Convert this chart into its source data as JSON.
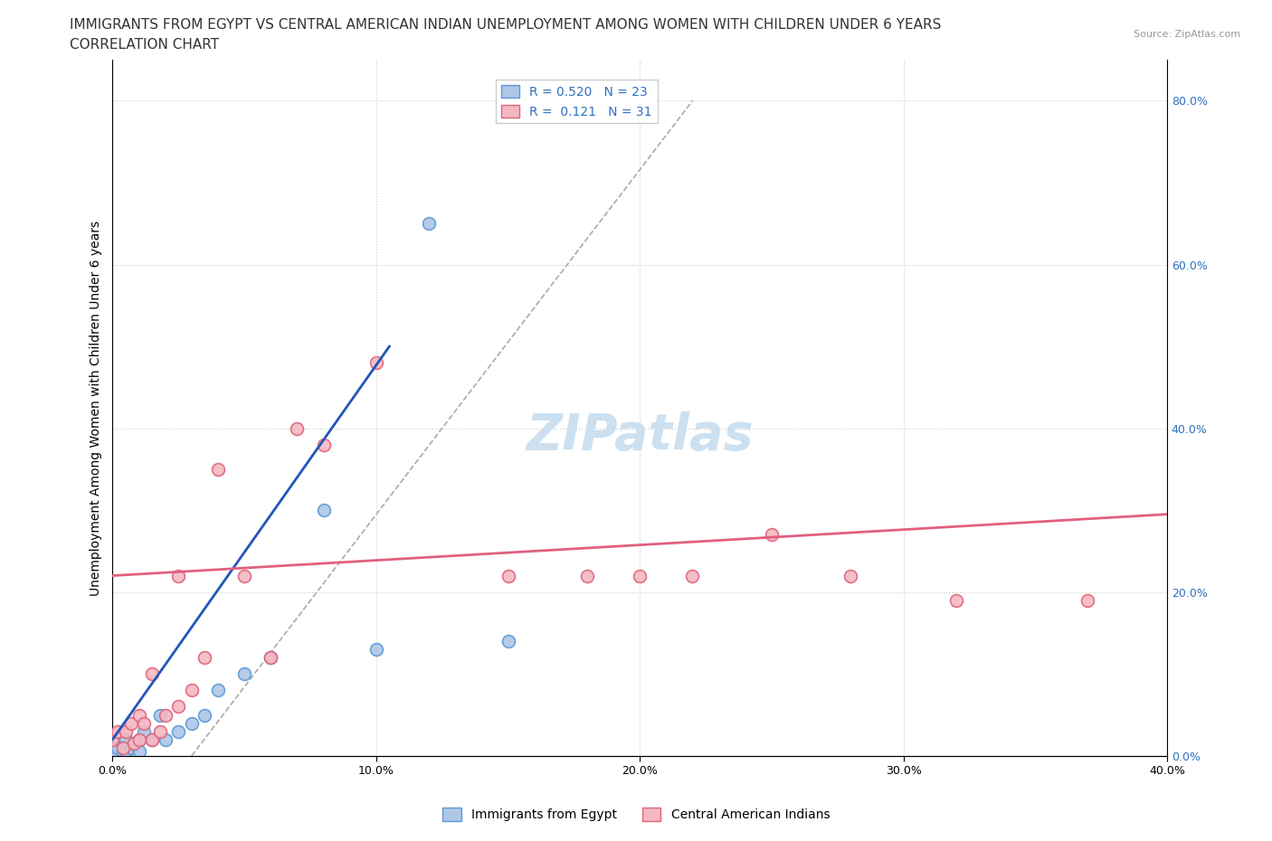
{
  "title_line1": "IMMIGRANTS FROM EGYPT VS CENTRAL AMERICAN INDIAN UNEMPLOYMENT AMONG WOMEN WITH CHILDREN UNDER 6 YEARS",
  "title_line2": "CORRELATION CHART",
  "source": "Source: ZipAtlas.com",
  "ylabel": "Unemployment Among Women with Children Under 6 years",
  "xlim": [
    0.0,
    0.4
  ],
  "ylim": [
    0.0,
    0.85
  ],
  "xticks": [
    0.0,
    0.1,
    0.2,
    0.3,
    0.4
  ],
  "xtick_labels": [
    "0.0%",
    "10.0%",
    "20.0%",
    "30.0%",
    "40.0%"
  ],
  "ytick_labels_right": [
    "0.0%",
    "20.0%",
    "40.0%",
    "60.0%",
    "80.0%"
  ],
  "yticks_right": [
    0.0,
    0.2,
    0.4,
    0.6,
    0.8
  ],
  "egypt_color": "#aec6e8",
  "egypt_edge_color": "#5b9bd5",
  "central_color": "#f4b8c1",
  "central_edge_color": "#e0627a",
  "egypt_R": 0.52,
  "egypt_N": 23,
  "central_R": 0.121,
  "central_N": 31,
  "legend_label_egypt": "Immigrants from Egypt",
  "legend_label_central": "Central American Indians",
  "watermark": "ZIPatlas",
  "egypt_scatter_x": [
    0.0,
    0.002,
    0.004,
    0.005,
    0.005,
    0.007,
    0.008,
    0.01,
    0.01,
    0.012,
    0.015,
    0.018,
    0.02,
    0.025,
    0.03,
    0.035,
    0.04,
    0.05,
    0.06,
    0.08,
    0.1,
    0.12,
    0.15
  ],
  "egypt_scatter_y": [
    0.005,
    0.01,
    0.005,
    0.02,
    0.005,
    0.01,
    0.015,
    0.02,
    0.005,
    0.03,
    0.02,
    0.05,
    0.02,
    0.03,
    0.04,
    0.05,
    0.08,
    0.1,
    0.12,
    0.3,
    0.13,
    0.65,
    0.14
  ],
  "central_scatter_x": [
    0.0,
    0.002,
    0.004,
    0.005,
    0.007,
    0.008,
    0.01,
    0.01,
    0.012,
    0.015,
    0.015,
    0.018,
    0.02,
    0.025,
    0.025,
    0.03,
    0.035,
    0.04,
    0.05,
    0.06,
    0.07,
    0.08,
    0.1,
    0.15,
    0.18,
    0.2,
    0.22,
    0.25,
    0.28,
    0.32,
    0.37
  ],
  "central_scatter_y": [
    0.02,
    0.03,
    0.01,
    0.03,
    0.04,
    0.015,
    0.02,
    0.05,
    0.04,
    0.02,
    0.1,
    0.03,
    0.05,
    0.06,
    0.22,
    0.08,
    0.12,
    0.35,
    0.22,
    0.12,
    0.4,
    0.38,
    0.48,
    0.22,
    0.22,
    0.22,
    0.22,
    0.27,
    0.22,
    0.19,
    0.19
  ],
  "blue_line_x0": 0.0,
  "blue_line_y0": 0.02,
  "blue_line_x1": 0.105,
  "blue_line_y1": 0.5,
  "pink_line_x0": 0.0,
  "pink_line_y0": 0.22,
  "pink_line_x1": 0.4,
  "pink_line_y1": 0.295,
  "dash_line_x0": 0.03,
  "dash_line_y0": 0.0,
  "dash_line_x1": 0.22,
  "dash_line_y1": 0.8,
  "title_fontsize": 11,
  "subtitle_fontsize": 11,
  "axis_label_fontsize": 10,
  "tick_fontsize": 9,
  "legend_fontsize": 10,
  "watermark_fontsize": 40,
  "watermark_color": "#cce0f0",
  "background_color": "#ffffff",
  "grid_color": "#e0e0e0",
  "blue_line_color": "#2255bb",
  "pink_line_color": "#e06080"
}
